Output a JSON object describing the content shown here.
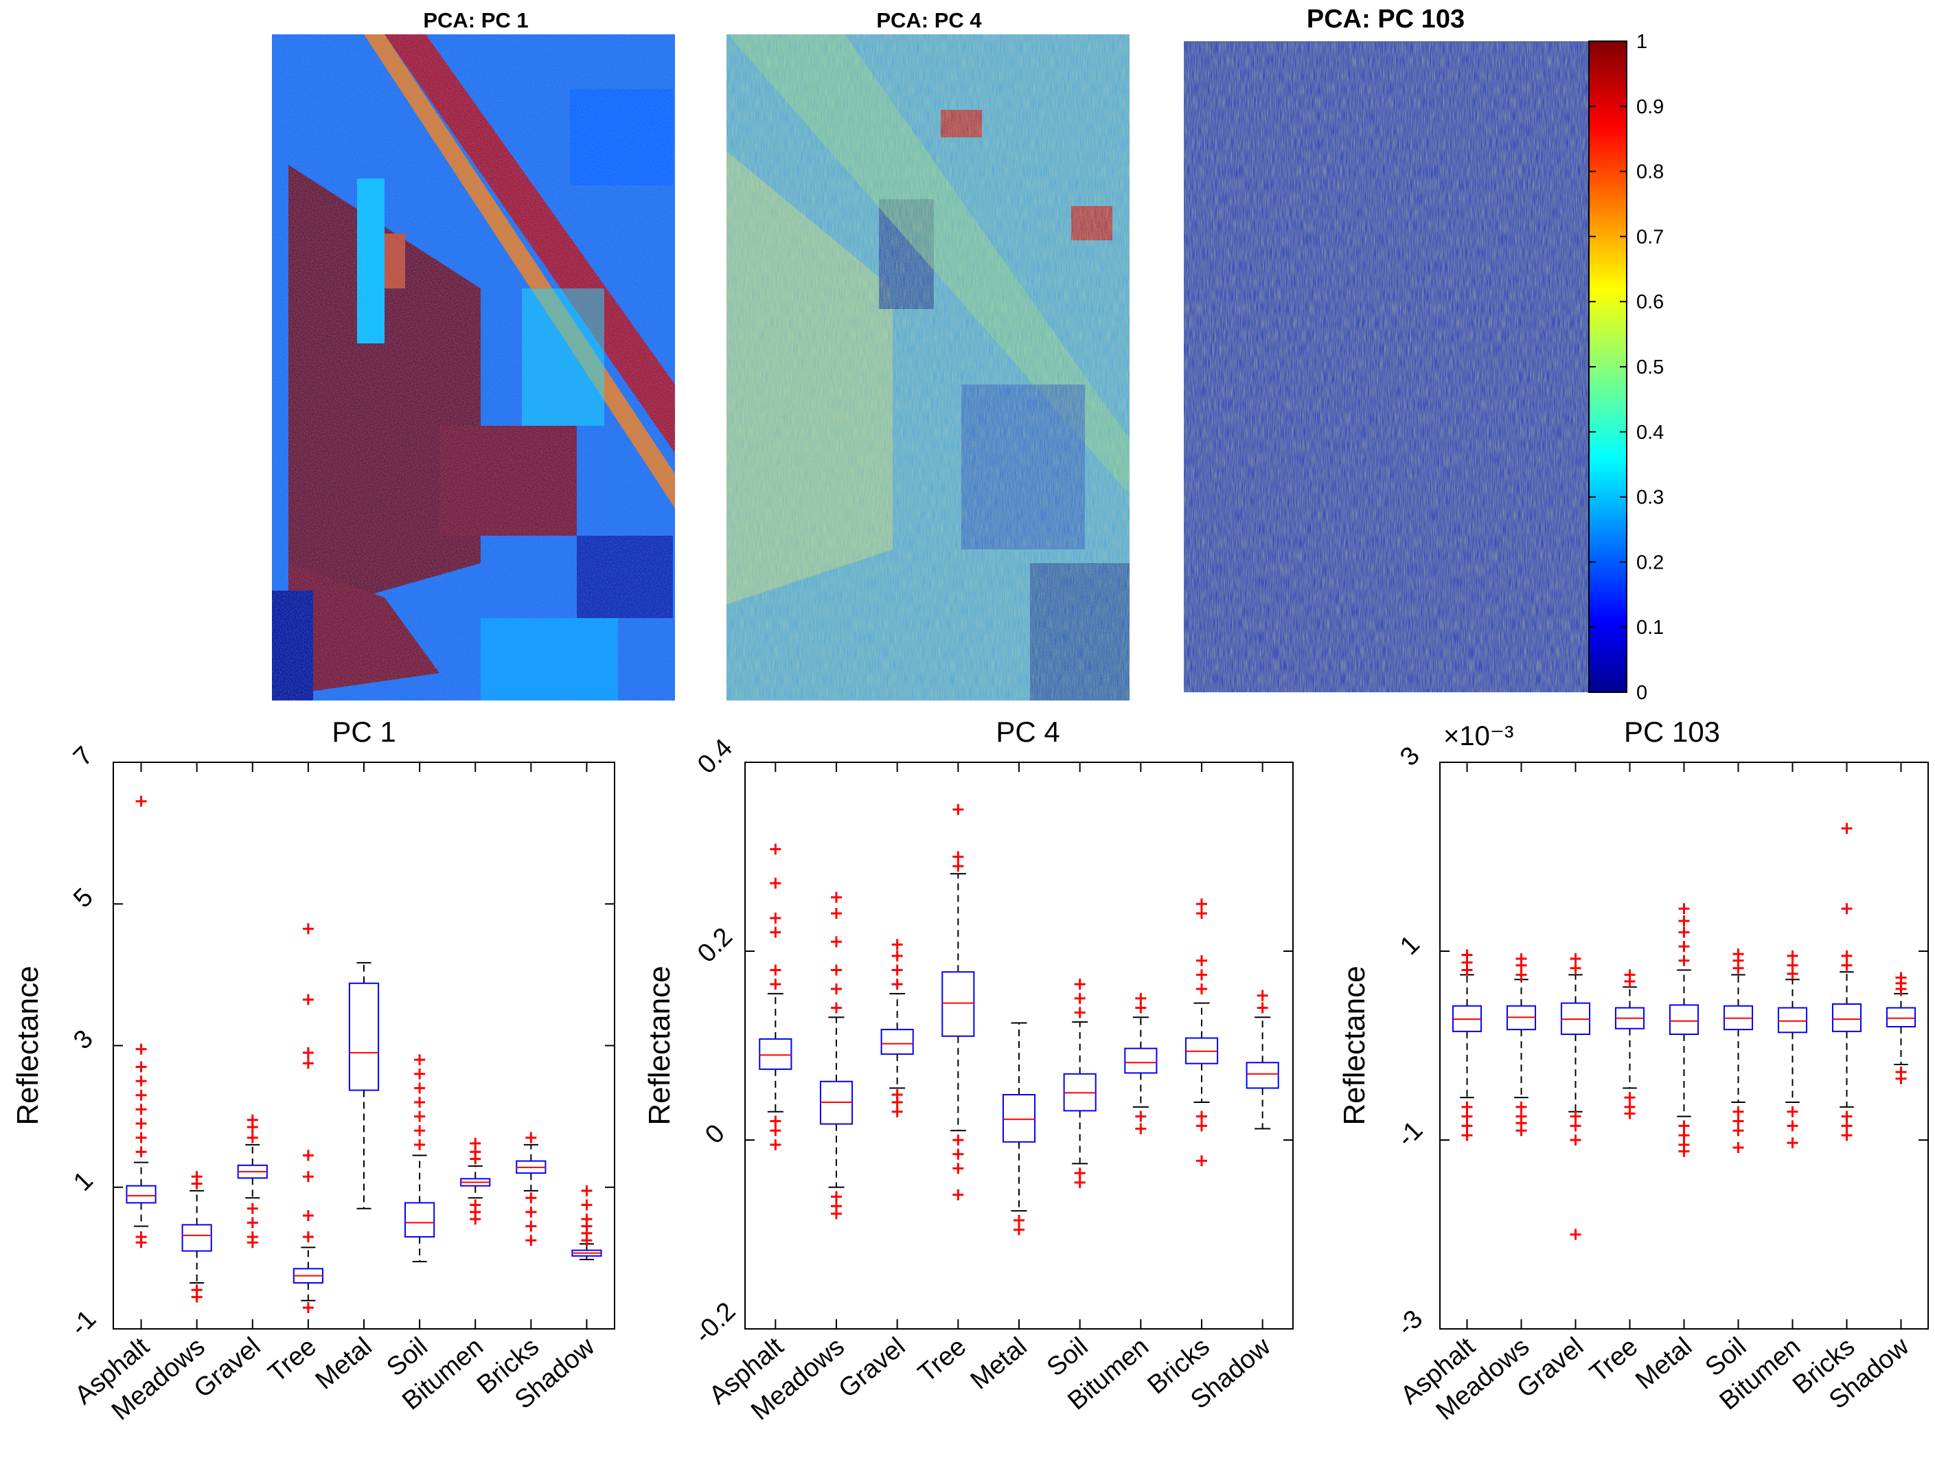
{
  "maps": {
    "titles": [
      "PCA: PC 1",
      "PCA: PC 4",
      "PCA: PC 103"
    ],
    "colorbar": {
      "ticks": [
        "0",
        "0.1",
        "0.2",
        "0.3",
        "0.4",
        "0.5",
        "0.6",
        "0.7",
        "0.8",
        "0.9",
        "1"
      ],
      "colormap": "jet",
      "range": [
        0,
        1
      ]
    }
  },
  "chart_data": [
    {
      "type": "boxplot",
      "title": "PC 1",
      "ylabel": "Reflectance",
      "categories": [
        "Asphalt",
        "Meadows",
        "Gravel",
        "Tree",
        "Metal",
        "Soil",
        "Bitumen",
        "Bricks",
        "Shadow"
      ],
      "ylim": [
        -1,
        7
      ],
      "yticks": [
        -1,
        1,
        3,
        5,
        7
      ],
      "ytick_labels": [
        "-1",
        "1",
        "3",
        "5",
        "7"
      ],
      "box_color": "#0000ff",
      "median_color": "#ff0000",
      "outlier_color": "#ff0000",
      "boxes": [
        {
          "q1": 0.78,
          "median": 0.88,
          "q3": 1.02,
          "whisker_low": 0.45,
          "whisker_high": 1.35,
          "outliers": [
            0.3,
            0.22,
            1.5,
            1.7,
            1.9,
            2.1,
            2.3,
            2.5,
            2.7,
            2.95,
            6.45
          ]
        },
        {
          "q1": 0.1,
          "median": 0.32,
          "q3": 0.47,
          "whisker_low": -0.35,
          "whisker_high": 0.95,
          "outliers": [
            -0.45,
            -0.55,
            1.05,
            1.15
          ]
        },
        {
          "q1": 1.13,
          "median": 1.22,
          "q3": 1.31,
          "whisker_low": 0.85,
          "whisker_high": 1.6,
          "outliers": [
            0.7,
            0.5,
            0.3,
            0.22,
            1.7,
            1.85,
            1.95
          ]
        },
        {
          "q1": -0.35,
          "median": -0.25,
          "q3": -0.15,
          "whisker_low": -0.6,
          "whisker_high": 0.15,
          "outliers": [
            -0.7,
            0.3,
            0.6,
            1.15,
            1.45,
            2.75,
            2.9,
            3.65,
            4.65
          ]
        },
        {
          "q1": 2.37,
          "median": 2.9,
          "q3": 3.88,
          "whisker_low": 0.7,
          "whisker_high": 4.17,
          "outliers": []
        },
        {
          "q1": 0.3,
          "median": 0.5,
          "q3": 0.78,
          "whisker_low": -0.05,
          "whisker_high": 1.45,
          "outliers": [
            1.6,
            1.8,
            2.0,
            2.2,
            2.4,
            2.6,
            2.8
          ]
        },
        {
          "q1": 1.02,
          "median": 1.07,
          "q3": 1.12,
          "whisker_low": 0.85,
          "whisker_high": 1.3,
          "outliers": [
            0.75,
            0.65,
            0.55,
            1.4,
            1.5,
            1.62
          ]
        },
        {
          "q1": 1.2,
          "median": 1.28,
          "q3": 1.37,
          "whisker_low": 0.95,
          "whisker_high": 1.6,
          "outliers": [
            0.85,
            0.65,
            0.45,
            0.25,
            1.7
          ]
        },
        {
          "q1": 0.03,
          "median": 0.07,
          "q3": 0.11,
          "whisker_low": -0.02,
          "whisker_high": 0.2,
          "outliers": [
            0.25,
            0.35,
            0.45,
            0.55,
            0.75,
            0.95
          ]
        }
      ]
    },
    {
      "type": "boxplot",
      "title": "PC 4",
      "ylabel": "Reflectance",
      "categories": [
        "Asphalt",
        "Meadows",
        "Gravel",
        "Tree",
        "Metal",
        "Soil",
        "Bitumen",
        "Bricks",
        "Shadow"
      ],
      "ylim": [
        -0.2,
        0.4
      ],
      "yticks": [
        -0.2,
        0,
        0.2,
        0.4
      ],
      "ytick_labels": [
        "-0.2",
        "0",
        "0.2",
        "0.4"
      ],
      "box_color": "#0000ff",
      "median_color": "#ff0000",
      "outlier_color": "#ff0000",
      "boxes": [
        {
          "q1": 0.075,
          "median": 0.09,
          "q3": 0.107,
          "whisker_low": 0.03,
          "whisker_high": 0.155,
          "outliers": [
            0.02,
            0.01,
            -0.005,
            0.165,
            0.18,
            0.22,
            0.235,
            0.272,
            0.308
          ]
        },
        {
          "q1": 0.017,
          "median": 0.04,
          "q3": 0.062,
          "whisker_low": -0.05,
          "whisker_high": 0.13,
          "outliers": [
            -0.06,
            -0.07,
            -0.078,
            0.14,
            0.16,
            0.18,
            0.21,
            0.24,
            0.257
          ]
        },
        {
          "q1": 0.091,
          "median": 0.102,
          "q3": 0.117,
          "whisker_low": 0.055,
          "whisker_high": 0.155,
          "outliers": [
            0.048,
            0.04,
            0.03,
            0.165,
            0.18,
            0.195,
            0.207
          ]
        },
        {
          "q1": 0.11,
          "median": 0.145,
          "q3": 0.178,
          "whisker_low": 0.01,
          "whisker_high": 0.282,
          "outliers": [
            0.0,
            -0.015,
            -0.03,
            -0.058,
            0.29,
            0.3,
            0.35
          ]
        },
        {
          "q1": -0.002,
          "median": 0.022,
          "q3": 0.048,
          "whisker_low": -0.075,
          "whisker_high": 0.124,
          "outliers": [
            -0.085,
            -0.095
          ]
        },
        {
          "q1": 0.031,
          "median": 0.05,
          "q3": 0.07,
          "whisker_low": -0.025,
          "whisker_high": 0.125,
          "outliers": [
            -0.035,
            -0.045,
            0.135,
            0.15,
            0.165
          ]
        },
        {
          "q1": 0.071,
          "median": 0.082,
          "q3": 0.097,
          "whisker_low": 0.035,
          "whisker_high": 0.13,
          "outliers": [
            0.025,
            0.012,
            0.14,
            0.15
          ]
        },
        {
          "q1": 0.081,
          "median": 0.094,
          "q3": 0.108,
          "whisker_low": 0.04,
          "whisker_high": 0.145,
          "outliers": [
            0.025,
            0.015,
            -0.022,
            0.16,
            0.175,
            0.19,
            0.24,
            0.25
          ]
        },
        {
          "q1": 0.055,
          "median": 0.07,
          "q3": 0.082,
          "whisker_low": 0.012,
          "whisker_high": 0.13,
          "outliers": [
            0.14,
            0.153
          ]
        }
      ]
    },
    {
      "type": "boxplot",
      "title": "PC 103",
      "ylabel": "Reflectance",
      "y_exponent_label": "×10⁻³",
      "categories": [
        "Asphalt",
        "Meadows",
        "Gravel",
        "Tree",
        "Metal",
        "Soil",
        "Bitumen",
        "Bricks",
        "Shadow"
      ],
      "ylim": [
        -3,
        3
      ],
      "yticks": [
        -3,
        -1,
        1,
        3
      ],
      "ytick_labels": [
        "-3",
        "-1",
        "1",
        "3"
      ],
      "box_color": "#0000ff",
      "median_color": "#ff0000",
      "outlier_color": "#ff0000",
      "boxes": [
        {
          "q1": 0.15,
          "median": 0.28,
          "q3": 0.42,
          "whisker_low": -0.55,
          "whisker_high": 0.75,
          "outliers": [
            -0.65,
            -0.75,
            -0.85,
            -0.95,
            0.8,
            0.88,
            0.96
          ]
        },
        {
          "q1": 0.17,
          "median": 0.3,
          "q3": 0.42,
          "whisker_low": -0.55,
          "whisker_high": 0.7,
          "outliers": [
            -0.65,
            -0.75,
            -0.82,
            -0.9,
            0.75,
            0.85,
            0.92
          ]
        },
        {
          "q1": 0.12,
          "median": 0.28,
          "q3": 0.45,
          "whisker_low": -0.7,
          "whisker_high": 0.75,
          "outliers": [
            -0.75,
            -0.85,
            -1.0,
            -2.0,
            0.82,
            0.92
          ]
        },
        {
          "q1": 0.18,
          "median": 0.29,
          "q3": 0.4,
          "whisker_low": -0.45,
          "whisker_high": 0.62,
          "outliers": [
            -0.55,
            -0.65,
            -0.72,
            0.68,
            0.75
          ]
        },
        {
          "q1": 0.12,
          "median": 0.26,
          "q3": 0.43,
          "whisker_low": -0.75,
          "whisker_high": 0.8,
          "outliers": [
            -0.85,
            -0.95,
            -1.05,
            -1.12,
            0.9,
            1.05,
            1.2,
            1.32,
            1.45
          ]
        },
        {
          "q1": 0.17,
          "median": 0.29,
          "q3": 0.42,
          "whisker_low": -0.6,
          "whisker_high": 0.75,
          "outliers": [
            -0.7,
            -0.8,
            -0.9,
            -1.08,
            0.82,
            0.9,
            0.97
          ]
        },
        {
          "q1": 0.14,
          "median": 0.26,
          "q3": 0.4,
          "whisker_low": -0.6,
          "whisker_high": 0.7,
          "outliers": [
            -0.7,
            -0.85,
            -1.03,
            0.76,
            0.85,
            0.95
          ]
        },
        {
          "q1": 0.15,
          "median": 0.28,
          "q3": 0.44,
          "whisker_low": -0.65,
          "whisker_high": 0.78,
          "outliers": [
            -0.75,
            -0.85,
            -0.95,
            0.85,
            0.95,
            1.45,
            2.3
          ]
        },
        {
          "q1": 0.2,
          "median": 0.29,
          "q3": 0.4,
          "whisker_low": -0.2,
          "whisker_high": 0.55,
          "outliers": [
            -0.28,
            -0.35,
            0.6,
            0.66,
            0.72
          ]
        }
      ]
    }
  ]
}
